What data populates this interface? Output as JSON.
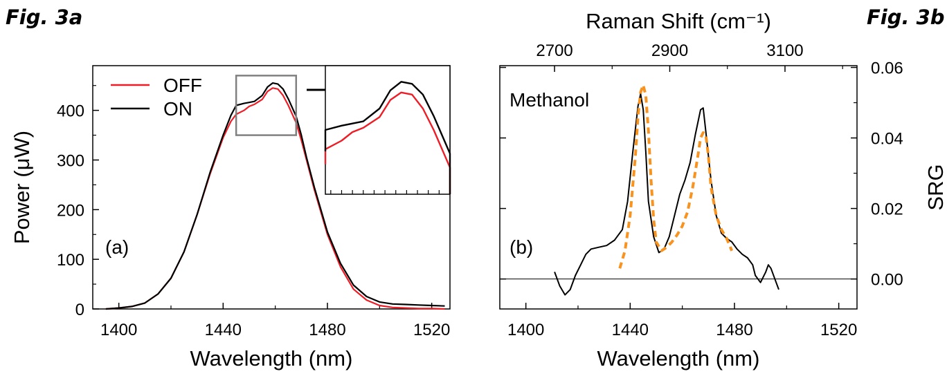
{
  "figure_labels": {
    "a": "Fig. 3a",
    "b": "Fig. 3b"
  },
  "colors": {
    "off": "#ee1c25",
    "on": "#000000",
    "dashed": "#f7931e",
    "inset_box": "#808080"
  },
  "chart_data": [
    {
      "type": "line",
      "panel_label": "(a)",
      "xlabel": "Wavelength (nm)",
      "ylabel": "Power (μW)",
      "xlim": [
        1390,
        1527
      ],
      "ylim": [
        0,
        490
      ],
      "xticks": [
        1400,
        1440,
        1480,
        1520
      ],
      "yticks": [
        0,
        100,
        200,
        300,
        400
      ],
      "legend": {
        "placement": "top-left",
        "entries": [
          "OFF",
          "ON"
        ]
      },
      "series": [
        {
          "name": "OFF",
          "color": "#ee1c25",
          "x": [
            1395,
            1400,
            1405,
            1410,
            1415,
            1420,
            1425,
            1430,
            1435,
            1440,
            1443,
            1445,
            1448,
            1450,
            1452,
            1455,
            1457,
            1459,
            1461,
            1463,
            1465,
            1468,
            1470,
            1472,
            1475,
            1480,
            1485,
            1490,
            1495,
            1500,
            1505,
            1510,
            1515,
            1520,
            1525
          ],
          "y": [
            0,
            2,
            5,
            12,
            30,
            62,
            115,
            190,
            272,
            345,
            378,
            392,
            400,
            408,
            412,
            422,
            438,
            445,
            443,
            430,
            410,
            375,
            340,
            300,
            240,
            150,
            85,
            40,
            18,
            7,
            3,
            2,
            1,
            1,
            0
          ]
        },
        {
          "name": "ON",
          "color": "#000000",
          "x": [
            1395,
            1400,
            1405,
            1410,
            1415,
            1420,
            1425,
            1430,
            1435,
            1440,
            1443,
            1445,
            1448,
            1450,
            1452,
            1455,
            1457,
            1459,
            1461,
            1463,
            1465,
            1468,
            1470,
            1472,
            1475,
            1480,
            1485,
            1490,
            1495,
            1500,
            1505,
            1510,
            1515,
            1520,
            1525
          ],
          "y": [
            0,
            2,
            5,
            12,
            30,
            62,
            115,
            190,
            275,
            350,
            390,
            410,
            414,
            416,
            418,
            430,
            447,
            455,
            453,
            443,
            423,
            388,
            350,
            305,
            245,
            155,
            92,
            48,
            25,
            14,
            10,
            9,
            8,
            7,
            6
          ]
        }
      ],
      "inset": {
        "xlim": [
          1445,
          1468
        ],
        "ylim": [
          350,
          470
        ],
        "box_x": [
          1445,
          1468
        ],
        "box_y": [
          350,
          470
        ]
      }
    },
    {
      "type": "line",
      "panel_label": "(b)",
      "annotation": "Methanol",
      "xlabel": "Wavelength (nm)",
      "ylabel": "SRG",
      "top_xlabel": "Raman Shift (cm⁻¹)",
      "xlim": [
        1390,
        1527
      ],
      "ylim": [
        -0.0085,
        0.0605
      ],
      "xticks": [
        1400,
        1440,
        1480,
        1520
      ],
      "yticks": [
        0.0,
        0.02,
        0.04,
        0.06
      ],
      "ytick_labels": [
        "0.00",
        "0.02",
        "0.04",
        "0.06"
      ],
      "top_ticks": [
        2700,
        2900,
        3100
      ],
      "top_xlim": [
        2605,
        3225
      ],
      "reference_line_y": 0,
      "series": [
        {
          "style": "solid",
          "color": "#000000",
          "x": [
            1411,
            1413,
            1415,
            1417,
            1419,
            1421,
            1423,
            1425,
            1428,
            1431,
            1434,
            1437,
            1439,
            1441,
            1443,
            1444,
            1445,
            1446,
            1447,
            1449,
            1451,
            1453,
            1455,
            1457,
            1459,
            1461,
            1463,
            1465,
            1467,
            1468,
            1469,
            1471,
            1473,
            1475,
            1477,
            1479,
            1481,
            1483,
            1485,
            1487,
            1488,
            1490,
            1492,
            1493,
            1494,
            1496,
            1497
          ],
          "y": [
            0.002,
            -0.002,
            -0.0045,
            -0.003,
            0.001,
            0.004,
            0.007,
            0.0085,
            0.009,
            0.0095,
            0.011,
            0.014,
            0.022,
            0.036,
            0.049,
            0.0525,
            0.048,
            0.036,
            0.022,
            0.012,
            0.0075,
            0.0085,
            0.012,
            0.018,
            0.024,
            0.028,
            0.033,
            0.041,
            0.048,
            0.0485,
            0.042,
            0.028,
            0.018,
            0.013,
            0.0115,
            0.0105,
            0.0085,
            0.007,
            0.006,
            0.004,
            0.001,
            -0.001,
            0.002,
            0.004,
            0.003,
            -0.001,
            -0.003
          ]
        },
        {
          "style": "dashed",
          "color": "#f7931e",
          "x": [
            1436,
            1438,
            1440,
            1442,
            1443,
            1444,
            1445,
            1446,
            1447,
            1448,
            1449,
            1450,
            1452,
            1454,
            1456,
            1458,
            1460,
            1462,
            1464,
            1466,
            1467,
            1468,
            1469,
            1470,
            1471,
            1473,
            1475,
            1477,
            1479
          ],
          "y": [
            0.003,
            0.008,
            0.018,
            0.035,
            0.046,
            0.053,
            0.055,
            0.052,
            0.042,
            0.028,
            0.017,
            0.0105,
            0.008,
            0.009,
            0.0105,
            0.0125,
            0.015,
            0.019,
            0.026,
            0.035,
            0.04,
            0.0415,
            0.041,
            0.035,
            0.026,
            0.018,
            0.014,
            0.0115,
            0.008
          ]
        }
      ]
    }
  ]
}
